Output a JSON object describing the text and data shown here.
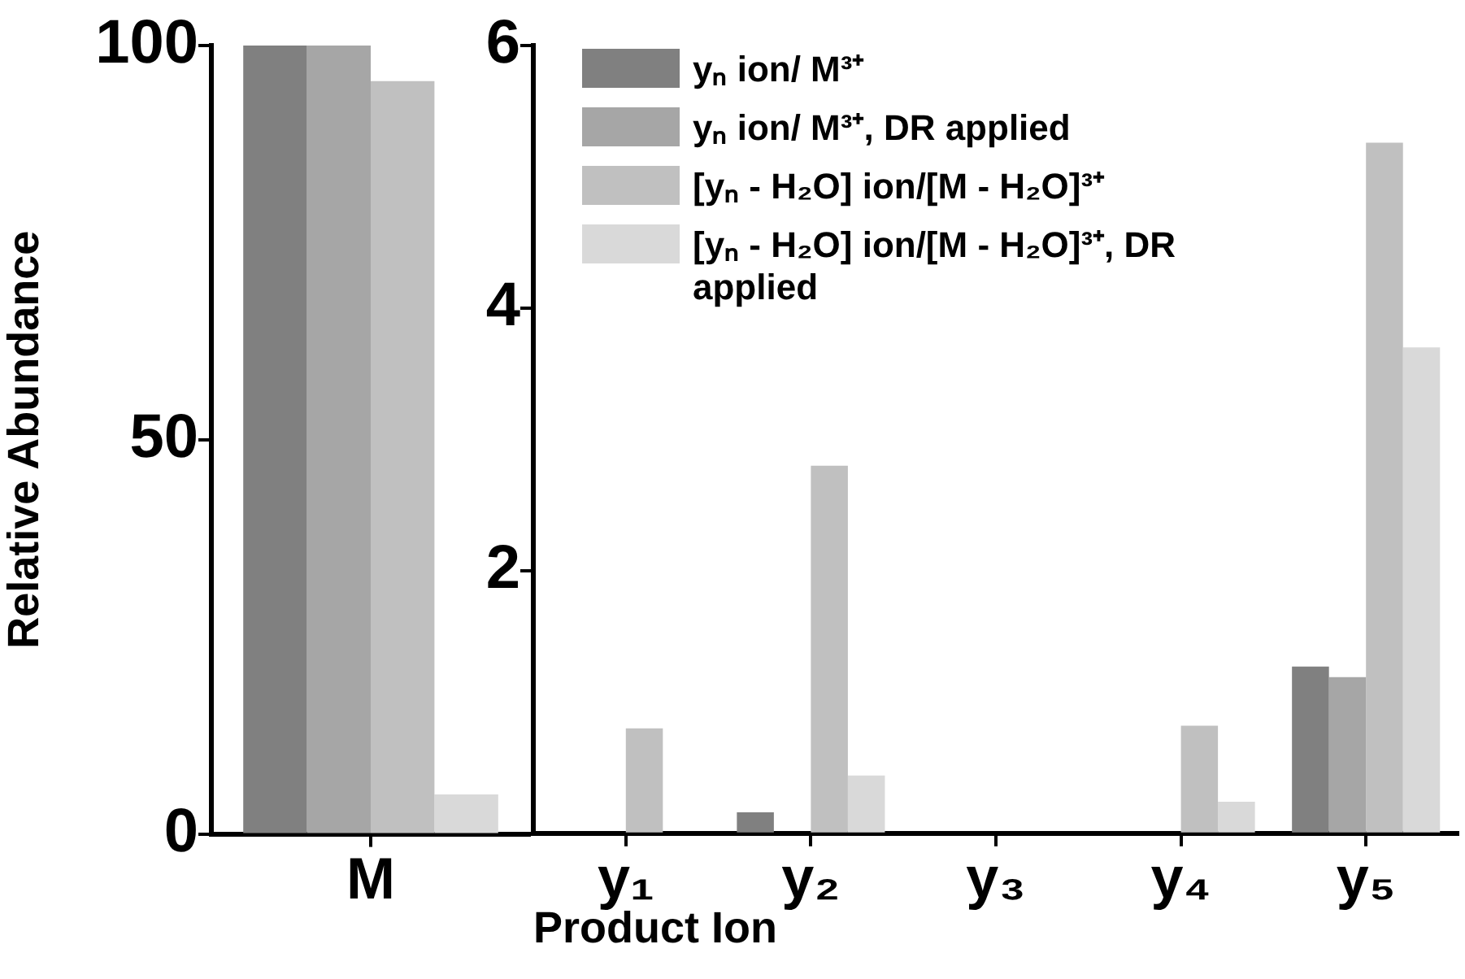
{
  "chart_data": [
    {
      "type": "bar",
      "ylabel": "Relative Abundance",
      "categories": [
        "M"
      ],
      "ylim": [
        0,
        100
      ],
      "yticks": [
        0,
        50,
        100
      ],
      "grid": false,
      "legend": false,
      "series": [
        {
          "color": "#808080",
          "values": [
            100
          ]
        },
        {
          "color": "#a6a6a6",
          "values": [
            100
          ]
        },
        {
          "color": "#c0c0c0",
          "values": [
            95.5
          ]
        },
        {
          "color": "#d9d9d9",
          "values": [
            5
          ]
        }
      ]
    },
    {
      "type": "bar",
      "xlabel": "Product Ion",
      "categories": [
        "y₁",
        "y₂",
        "y₃",
        "y₄",
        "y₅"
      ],
      "ylim": [
        0,
        6
      ],
      "yticks": [
        {
          "value": 0,
          "label": null
        },
        2,
        4,
        6
      ],
      "grid": false,
      "legend": "top left",
      "series": [
        {
          "name": "yₙ ion/ M³⁺",
          "color": "#808080",
          "values": [
            0,
            0.16,
            0,
            0,
            1.27
          ]
        },
        {
          "name": "yₙ ion/ M³⁺, DR applied",
          "color": "#a6a6a6",
          "values": [
            0,
            0,
            0,
            0,
            1.19
          ]
        },
        {
          "name": "[yₙ - H₂O] ion/[M - H₂O]³⁺",
          "color": "#c0c0c0",
          "values": [
            0.8,
            2.8,
            0,
            0.82,
            5.26
          ]
        },
        {
          "name": "[yₙ - H₂O] ion/[M - H₂O]³⁺, DR applied",
          "color": "#d9d9d9",
          "values": [
            0,
            0.44,
            0,
            0.24,
            3.7
          ]
        }
      ]
    }
  ]
}
